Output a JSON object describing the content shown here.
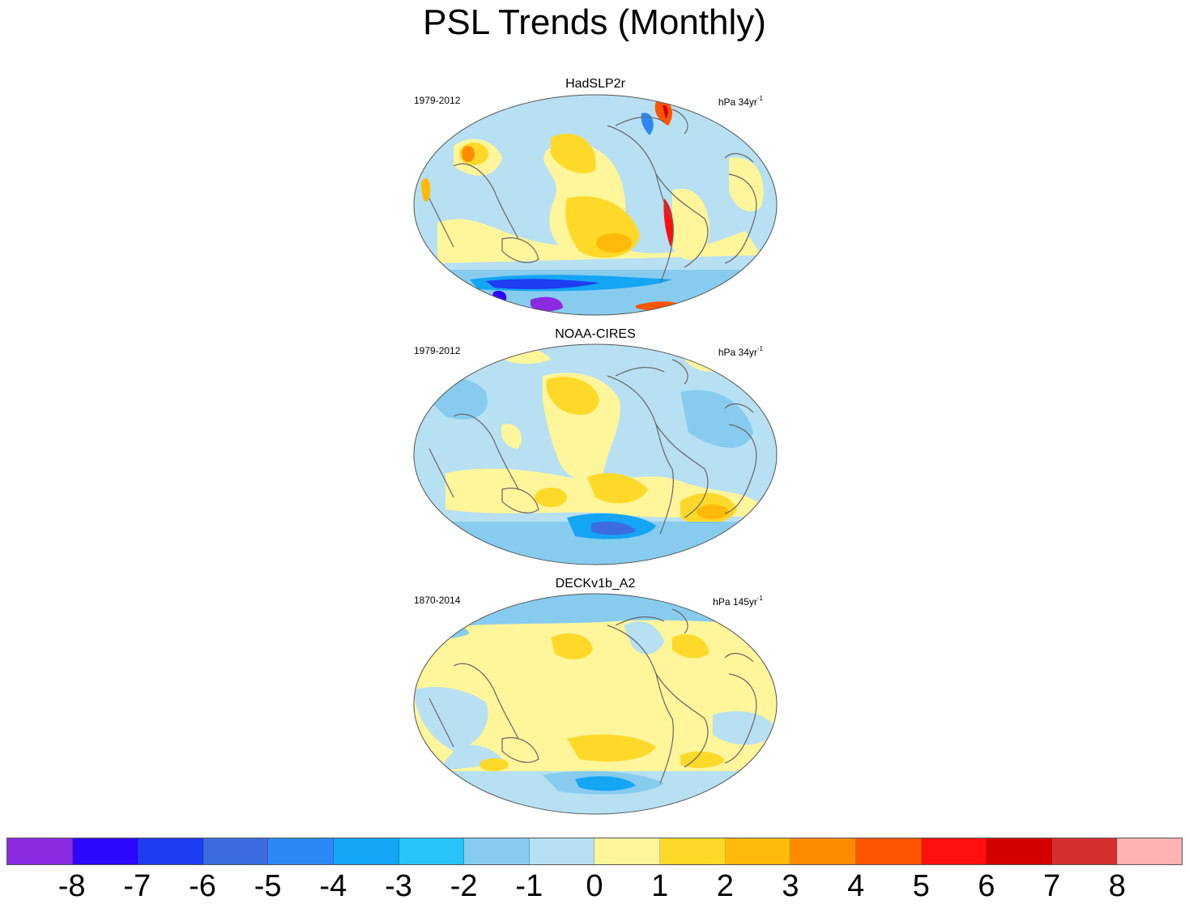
{
  "figure": {
    "title": "PSL Trends (Monthly)"
  },
  "panels": [
    {
      "title": "HadSLP2r",
      "period": "1979-2012",
      "units": "hPa 34yr",
      "units_exp": "-1"
    },
    {
      "title": "NOAA-CIRES",
      "period": "1979-2012",
      "units": "hPa 34yr",
      "units_exp": "-1"
    },
    {
      "title": "DECKv1b_A2",
      "period": "1870-2014",
      "units": "hPa 145yr",
      "units_exp": "-1"
    }
  ],
  "colorbar": {
    "colors": [
      "#8a2be2",
      "#2d08ff",
      "#1e3cf0",
      "#3c6ce0",
      "#2c88f4",
      "#14a5f5",
      "#28c3f8",
      "#87ccef",
      "#b7e0f3",
      "#fff59a",
      "#ffd92a",
      "#ffb90a",
      "#ff8c00",
      "#ff5500",
      "#ff0f0f",
      "#d40000",
      "#d43030",
      "#ffb3b3"
    ],
    "labels": [
      "-8",
      "-7",
      "-6",
      "-5",
      "-4",
      "-3",
      "-2",
      "-1",
      "0",
      "1",
      "2",
      "3",
      "4",
      "5",
      "6",
      "7",
      "8"
    ]
  }
}
